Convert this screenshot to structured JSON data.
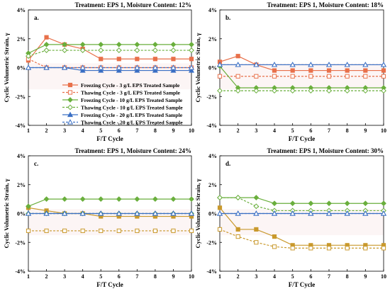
{
  "colors": {
    "orange": "#E8704A",
    "green": "#6AAF3D",
    "blue": "#3A6FC4",
    "olive": "#C9992C",
    "grid_band": "#f6e3e3",
    "axis": "#000000"
  },
  "chart_data": [
    {
      "type": "line",
      "panel_label": "a.",
      "title": "Treatment: EPS 1, Moisture Content: 12%",
      "xlabel": "F/T Cycle",
      "ylabel": "Cyclic Volumetric Strain, γ",
      "x": [
        1,
        2,
        3,
        4,
        5,
        6,
        7,
        8,
        9,
        10
      ],
      "ylim": [
        -4,
        4
      ],
      "yticks": [
        "-4%",
        "-2%",
        "0%",
        "2%",
        "4%"
      ],
      "xticks": [
        "1",
        "2",
        "3",
        "4",
        "5",
        "6",
        "7",
        "8",
        "9",
        "10"
      ],
      "legend_position": "center-right",
      "series": [
        {
          "name": "Freezing Cycle - 3 g/L EPS Treated Sample",
          "color": "orange",
          "dashed": false,
          "marker": "square",
          "filled": true,
          "values": [
            0.5,
            2.1,
            1.6,
            1.3,
            0.6,
            0.6,
            0.6,
            0.6,
            0.6,
            0.6
          ]
        },
        {
          "name": "Thawing Cycle - 3 g/L EPS Treated Sample",
          "color": "orange",
          "dashed": true,
          "marker": "square",
          "filled": false,
          "values": [
            0.6,
            0.0,
            0.0,
            0.0,
            0.0,
            0.0,
            0.0,
            0.0,
            0.0,
            0.0
          ]
        },
        {
          "name": "Freezing Cycle - 10 g/L EPS Treated Sample",
          "color": "green",
          "dashed": false,
          "marker": "diamond",
          "filled": true,
          "values": [
            1.0,
            1.6,
            1.6,
            1.6,
            1.6,
            1.6,
            1.6,
            1.6,
            1.6,
            1.6
          ]
        },
        {
          "name": "Thawing Cycle - 10 g/L EPS Treated Sample",
          "color": "green",
          "dashed": true,
          "marker": "diamond",
          "filled": false,
          "values": [
            0.8,
            1.2,
            1.2,
            1.2,
            1.2,
            1.2,
            1.2,
            1.2,
            1.2,
            1.2
          ]
        },
        {
          "name": "Freezing Cycle - 20 g/L EPS Treated Sample",
          "color": "blue",
          "dashed": false,
          "marker": "triangle",
          "filled": true,
          "values": [
            0.0,
            0.0,
            0.0,
            -0.2,
            -0.2,
            -0.2,
            -0.2,
            -0.2,
            -0.2,
            -0.2
          ]
        },
        {
          "name": "Thawing Cycle - 20 g/L EPS Treated Sample",
          "color": "blue",
          "dashed": true,
          "marker": "triangle",
          "filled": false,
          "values": [
            0.0,
            0.0,
            0.0,
            0.0,
            0.0,
            0.0,
            0.0,
            0.0,
            0.0,
            0.0
          ]
        }
      ]
    },
    {
      "type": "line",
      "panel_label": "b.",
      "title": "Treatment: EPS 1, Moisture Content: 18%",
      "xlabel": "F/T Cycle",
      "ylabel": "Cyclic Volumetric Strain, γ",
      "x": [
        1,
        2,
        3,
        4,
        5,
        6,
        7,
        8,
        9,
        10
      ],
      "ylim": [
        -4,
        4
      ],
      "yticks": [
        "-4%",
        "-2%",
        "0%",
        "2%",
        "4%"
      ],
      "xticks": [
        "1",
        "2",
        "3",
        "4",
        "5",
        "6",
        "7",
        "8",
        "9",
        "10"
      ],
      "series": [
        {
          "color": "orange",
          "dashed": false,
          "marker": "square",
          "filled": true,
          "values": [
            0.4,
            0.8,
            0.2,
            -0.2,
            -0.2,
            -0.2,
            -0.2,
            -0.2,
            -0.2,
            -0.2
          ]
        },
        {
          "color": "orange",
          "dashed": true,
          "marker": "square",
          "filled": false,
          "values": [
            -0.6,
            -0.6,
            -0.6,
            -0.6,
            -0.6,
            -0.6,
            -0.6,
            -0.6,
            -0.6,
            -0.6
          ]
        },
        {
          "color": "green",
          "dashed": false,
          "marker": "diamond",
          "filled": true,
          "values": [
            0.1,
            -1.4,
            -1.4,
            -1.4,
            -1.4,
            -1.4,
            -1.4,
            -1.4,
            -1.4,
            -1.4
          ]
        },
        {
          "color": "green",
          "dashed": true,
          "marker": "diamond",
          "filled": false,
          "values": [
            -1.6,
            -1.6,
            -1.6,
            -1.6,
            -1.6,
            -1.6,
            -1.6,
            -1.6,
            -1.6,
            -1.6
          ]
        },
        {
          "color": "blue",
          "dashed": false,
          "marker": "triangle",
          "filled": true,
          "values": [
            0.2,
            0.2,
            0.2,
            0.2,
            0.2,
            0.2,
            0.2,
            0.2,
            0.2,
            0.2
          ]
        },
        {
          "color": "blue",
          "dashed": true,
          "marker": "triangle",
          "filled": false,
          "values": [
            0.2,
            0.2,
            0.2,
            0.2,
            0.2,
            0.2,
            0.2,
            0.2,
            0.2,
            0.2
          ]
        }
      ]
    },
    {
      "type": "line",
      "panel_label": "c.",
      "title": "Treatment: EPS 1, Moisture Content: 24%",
      "xlabel": "F/T Cycle",
      "ylabel": "Cyclic Volumetric Strain, γ",
      "x": [
        1,
        2,
        3,
        4,
        5,
        6,
        7,
        8,
        9,
        10
      ],
      "ylim": [
        -4,
        4
      ],
      "yticks": [
        "-4%",
        "-2%",
        "0%",
        "2%",
        "4%"
      ],
      "xticks": [
        "1",
        "2",
        "3",
        "4",
        "5",
        "6",
        "7",
        "8",
        "9",
        "10"
      ],
      "series": [
        {
          "color": "olive",
          "dashed": false,
          "marker": "square",
          "filled": true,
          "values": [
            0.4,
            0.2,
            0.0,
            0.0,
            -0.2,
            -0.2,
            -0.2,
            -0.2,
            -0.2,
            -0.2
          ]
        },
        {
          "color": "olive",
          "dashed": true,
          "marker": "square",
          "filled": false,
          "values": [
            -1.2,
            -1.2,
            -1.2,
            -1.2,
            -1.2,
            -1.2,
            -1.2,
            -1.2,
            -1.2,
            -1.2
          ]
        },
        {
          "color": "green",
          "dashed": false,
          "marker": "diamond",
          "filled": true,
          "values": [
            0.5,
            1.0,
            1.0,
            1.0,
            1.0,
            1.0,
            1.0,
            1.0,
            1.0,
            1.0
          ]
        },
        {
          "color": "green",
          "dashed": true,
          "marker": "diamond",
          "filled": false,
          "values": [
            0.0,
            0.0,
            0.0,
            0.0,
            0.0,
            0.0,
            0.0,
            0.0,
            0.0,
            0.0
          ]
        },
        {
          "color": "blue",
          "dashed": false,
          "marker": "triangle",
          "filled": true,
          "values": [
            0.0,
            0.0,
            0.0,
            0.0,
            0.0,
            0.0,
            0.0,
            0.0,
            0.0,
            0.0
          ]
        },
        {
          "color": "blue",
          "dashed": true,
          "marker": "triangle",
          "filled": false,
          "values": [
            0.0,
            0.0,
            0.0,
            0.0,
            0.0,
            0.0,
            0.0,
            0.0,
            0.0,
            0.0
          ]
        }
      ]
    },
    {
      "type": "line",
      "panel_label": "d.",
      "title": "Treatment: EPS 1, Moisture Content: 30%",
      "xlabel": "F/T Cycle",
      "ylabel": "Cyclic Volumetric Strain, γ",
      "x": [
        1,
        2,
        3,
        4,
        5,
        6,
        7,
        8,
        9,
        10
      ],
      "ylim": [
        -4,
        4
      ],
      "yticks": [
        "-4%",
        "-2%",
        "0%",
        "2%",
        "4%"
      ],
      "xticks": [
        "1",
        "2",
        "3",
        "4",
        "5",
        "6",
        "7",
        "8",
        "9",
        "10"
      ],
      "series": [
        {
          "color": "olive",
          "dashed": false,
          "marker": "square",
          "filled": true,
          "values": [
            0.4,
            -1.1,
            -1.1,
            -1.6,
            -2.2,
            -2.2,
            -2.2,
            -2.2,
            -2.2,
            -2.2
          ]
        },
        {
          "color": "olive",
          "dashed": true,
          "marker": "square",
          "filled": false,
          "values": [
            -1.1,
            -1.6,
            -2.0,
            -2.3,
            -2.4,
            -2.4,
            -2.4,
            -2.4,
            -2.4,
            -2.4
          ]
        },
        {
          "color": "green",
          "dashed": false,
          "marker": "diamond",
          "filled": true,
          "values": [
            1.1,
            1.1,
            1.1,
            0.7,
            0.7,
            0.7,
            0.7,
            0.7,
            0.7,
            0.7
          ]
        },
        {
          "color": "green",
          "dashed": true,
          "marker": "diamond",
          "filled": false,
          "values": [
            1.1,
            1.1,
            0.5,
            0.2,
            0.2,
            0.2,
            0.2,
            0.2,
            0.2,
            0.2
          ]
        },
        {
          "color": "blue",
          "dashed": false,
          "marker": "triangle",
          "filled": true,
          "values": [
            0.0,
            0.0,
            0.0,
            0.0,
            0.0,
            0.0,
            0.0,
            0.0,
            0.0,
            0.0
          ]
        },
        {
          "color": "blue",
          "dashed": true,
          "marker": "triangle",
          "filled": false,
          "values": [
            0.0,
            0.0,
            0.0,
            0.0,
            0.0,
            0.0,
            0.0,
            0.0,
            0.0,
            0.0
          ]
        }
      ]
    }
  ]
}
